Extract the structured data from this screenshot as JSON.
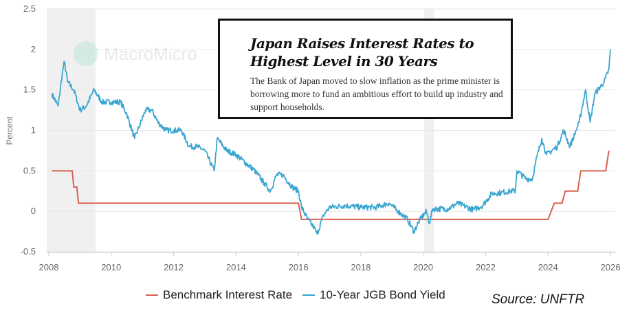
{
  "chart_data": {
    "type": "line",
    "ylabel": "Percent",
    "ylim": [
      -0.5,
      2.5
    ],
    "yticks": [
      "2.5",
      "2",
      "1.5",
      "1",
      "0.5",
      "0",
      "-0.5"
    ],
    "xlim": [
      2008,
      2026
    ],
    "xticks": [
      "2008",
      "2010",
      "2012",
      "2014",
      "2016",
      "2018",
      "2020",
      "2022",
      "2024",
      "2026"
    ],
    "grid": true,
    "legend_position": "bottom",
    "shaded_periods": [
      [
        2008.0,
        2009.5
      ],
      [
        2020.1,
        2020.35
      ]
    ],
    "series": [
      {
        "name": "Benchmark Interest Rate",
        "color": "#d9604f",
        "step": true,
        "points": [
          [
            2008.1,
            0.5
          ],
          [
            2008.75,
            0.5
          ],
          [
            2008.8,
            0.3
          ],
          [
            2008.9,
            0.3
          ],
          [
            2008.95,
            0.1
          ],
          [
            2016.0,
            0.1
          ],
          [
            2016.1,
            -0.1
          ],
          [
            2024.0,
            -0.1
          ],
          [
            2024.2,
            0.1
          ],
          [
            2024.45,
            0.1
          ],
          [
            2024.55,
            0.25
          ],
          [
            2024.95,
            0.25
          ],
          [
            2025.05,
            0.5
          ],
          [
            2025.85,
            0.5
          ],
          [
            2025.95,
            0.75
          ]
        ]
      },
      {
        "name": "10-Year JGB Bond Yield",
        "color": "#3aa6d0",
        "points": [
          [
            2008.1,
            1.45
          ],
          [
            2008.3,
            1.3
          ],
          [
            2008.45,
            1.75
          ],
          [
            2008.5,
            1.85
          ],
          [
            2008.6,
            1.6
          ],
          [
            2008.8,
            1.5
          ],
          [
            2009.0,
            1.25
          ],
          [
            2009.2,
            1.3
          ],
          [
            2009.45,
            1.5
          ],
          [
            2009.7,
            1.35
          ],
          [
            2010.0,
            1.35
          ],
          [
            2010.3,
            1.35
          ],
          [
            2010.5,
            1.2
          ],
          [
            2010.75,
            0.9
          ],
          [
            2010.9,
            1.05
          ],
          [
            2011.1,
            1.25
          ],
          [
            2011.3,
            1.25
          ],
          [
            2011.5,
            1.1
          ],
          [
            2011.75,
            1.0
          ],
          [
            2012.0,
            1.0
          ],
          [
            2012.25,
            1.0
          ],
          [
            2012.5,
            0.8
          ],
          [
            2012.75,
            0.8
          ],
          [
            2013.0,
            0.75
          ],
          [
            2013.3,
            0.5
          ],
          [
            2013.4,
            0.9
          ],
          [
            2013.7,
            0.75
          ],
          [
            2014.0,
            0.7
          ],
          [
            2014.3,
            0.6
          ],
          [
            2014.6,
            0.5
          ],
          [
            2014.9,
            0.35
          ],
          [
            2015.1,
            0.25
          ],
          [
            2015.3,
            0.45
          ],
          [
            2015.5,
            0.45
          ],
          [
            2015.8,
            0.3
          ],
          [
            2016.0,
            0.25
          ],
          [
            2016.1,
            0.05
          ],
          [
            2016.3,
            -0.1
          ],
          [
            2016.5,
            -0.2
          ],
          [
            2016.6,
            -0.28
          ],
          [
            2016.8,
            -0.05
          ],
          [
            2017.0,
            0.05
          ],
          [
            2017.5,
            0.07
          ],
          [
            2018.0,
            0.05
          ],
          [
            2018.5,
            0.05
          ],
          [
            2018.9,
            0.1
          ],
          [
            2019.2,
            0.0
          ],
          [
            2019.5,
            -0.1
          ],
          [
            2019.7,
            -0.25
          ],
          [
            2019.9,
            -0.1
          ],
          [
            2020.1,
            0.0
          ],
          [
            2020.2,
            -0.15
          ],
          [
            2020.3,
            0.03
          ],
          [
            2020.8,
            0.03
          ],
          [
            2021.1,
            0.1
          ],
          [
            2021.6,
            0.02
          ],
          [
            2021.9,
            0.07
          ],
          [
            2022.2,
            0.22
          ],
          [
            2022.5,
            0.23
          ],
          [
            2022.8,
            0.25
          ],
          [
            2022.95,
            0.25
          ],
          [
            2023.0,
            0.5
          ],
          [
            2023.3,
            0.4
          ],
          [
            2023.5,
            0.4
          ],
          [
            2023.6,
            0.6
          ],
          [
            2023.8,
            0.9
          ],
          [
            2023.95,
            0.7
          ],
          [
            2024.3,
            0.8
          ],
          [
            2024.5,
            1.0
          ],
          [
            2024.7,
            0.8
          ],
          [
            2024.9,
            1.0
          ],
          [
            2025.0,
            1.1
          ],
          [
            2025.2,
            1.5
          ],
          [
            2025.35,
            1.1
          ],
          [
            2025.5,
            1.45
          ],
          [
            2025.8,
            1.6
          ],
          [
            2025.95,
            1.75
          ],
          [
            2026.0,
            2.0
          ]
        ]
      }
    ]
  },
  "watermark": "MacroMicro",
  "headline": {
    "title": "Japan Raises Interest Rates to Highest Level in 30 Years",
    "subtitle": "The Bank of Japan moved to slow inflation as the prime minister is borrowing more to fund an ambitious effort to build up industry and support households."
  },
  "source": "Source: UNFTR"
}
